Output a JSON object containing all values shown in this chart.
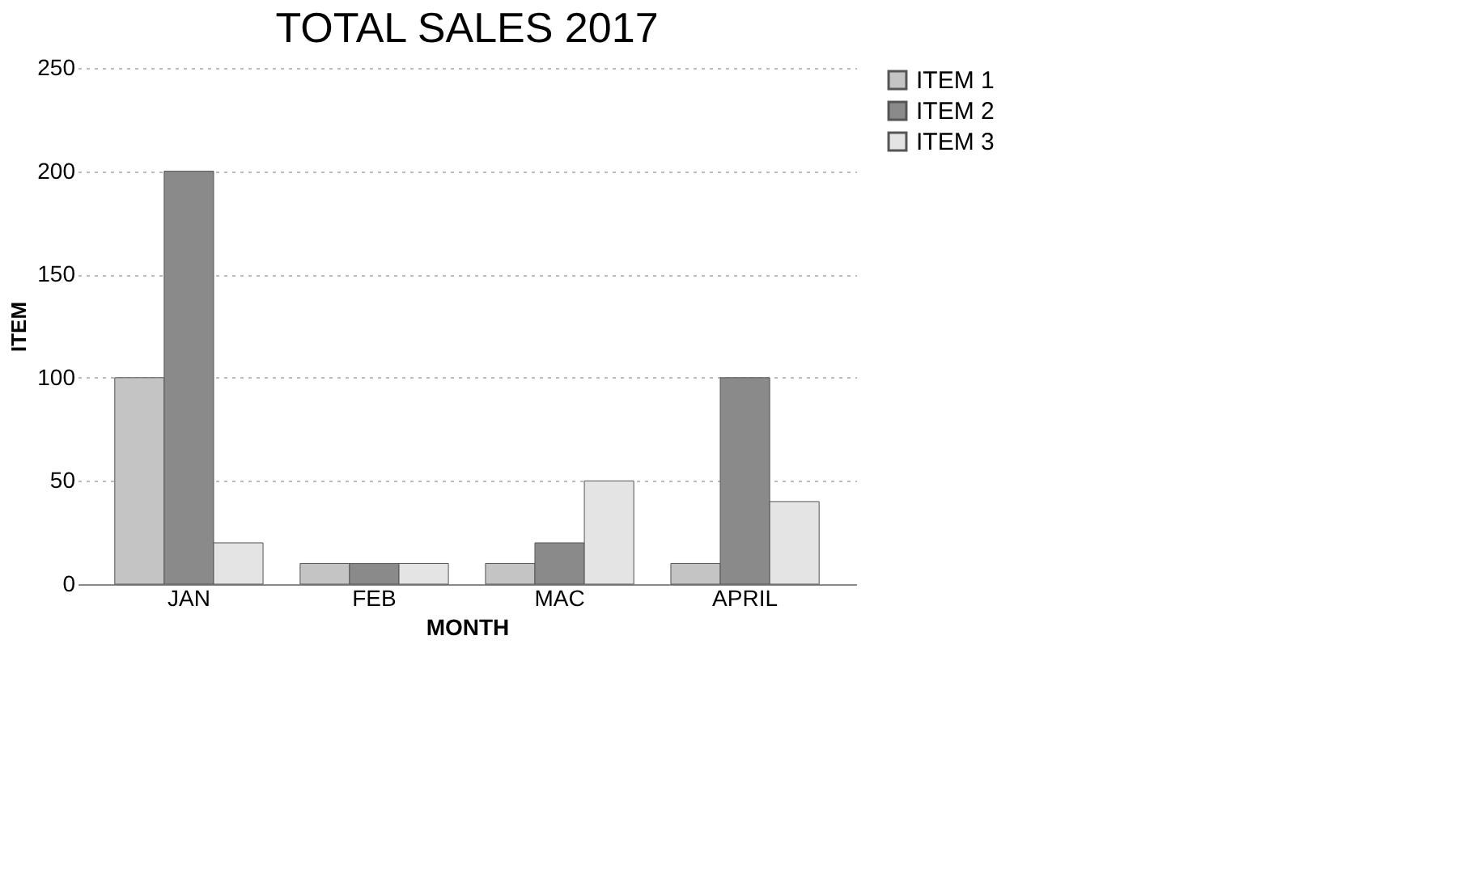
{
  "chart_data": {
    "type": "bar",
    "title": "TOTAL SALES 2017",
    "xlabel": "MONTH",
    "ylabel": "ITEM",
    "categories": [
      "JAN",
      "FEB",
      "MAC",
      "APRIL"
    ],
    "series": [
      {
        "name": "ITEM 1",
        "color": "#c4c4c4",
        "values": [
          100,
          10,
          10,
          10
        ]
      },
      {
        "name": "ITEM 2",
        "color": "#8a8a8a",
        "values": [
          200,
          10,
          20,
          100
        ]
      },
      {
        "name": "ITEM 3",
        "color": "#e4e4e4",
        "values": [
          20,
          10,
          50,
          40
        ]
      }
    ],
    "ylim": [
      0,
      250
    ],
    "yticks": [
      0,
      50,
      100,
      150,
      200,
      250
    ],
    "grid": "y",
    "legend": "right"
  }
}
